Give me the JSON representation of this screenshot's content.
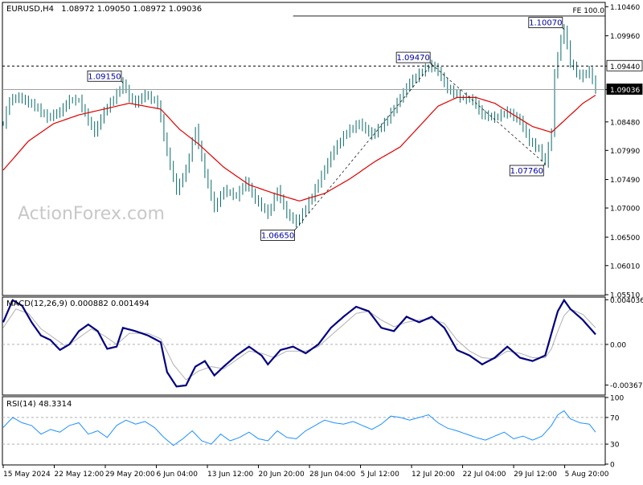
{
  "header": {
    "symbol": "EURUSD,H4",
    "ohlc": "1.08972 1.09050 1.08972 1.09036"
  },
  "watermark": "ActionForex.com",
  "chart_data": [
    {
      "type": "candlestick",
      "name": "EURUSD,H4",
      "ylim": [
        1.0551,
        1.1052
      ],
      "y_ticks": [
        "1.10460",
        "1.09960",
        "1.09440",
        "1.09036",
        "1.08480",
        "1.07990",
        "1.07490",
        "1.07000",
        "1.06500",
        "1.06010",
        "1.05510"
      ],
      "price_path": [
        [
          0,
          1.0845
        ],
        [
          2,
          1.0885
        ],
        [
          5,
          1.089
        ],
        [
          10,
          1.0875
        ],
        [
          14,
          1.0855
        ],
        [
          18,
          1.0865
        ],
        [
          21,
          1.0885
        ],
        [
          24,
          1.0885
        ],
        [
          27,
          1.085
        ],
        [
          29,
          1.083
        ],
        [
          32,
          1.0865
        ],
        [
          36,
          1.0895
        ],
        [
          38,
          1.0915
        ],
        [
          40,
          1.089
        ],
        [
          42,
          1.088
        ],
        [
          45,
          1.0895
        ],
        [
          49,
          1.088
        ],
        [
          52,
          1.0795
        ],
        [
          55,
          1.073
        ],
        [
          58,
          1.0765
        ],
        [
          61,
          1.0835
        ],
        [
          64,
          1.076
        ],
        [
          67,
          1.07
        ],
        [
          70,
          1.073
        ],
        [
          74,
          1.072
        ],
        [
          77,
          1.0745
        ],
        [
          80,
          1.0715
        ],
        [
          84,
          1.069
        ],
        [
          87,
          1.073
        ],
        [
          90,
          1.069
        ],
        [
          93,
          1.0675
        ],
        [
          95,
          1.069
        ],
        [
          98,
          1.072
        ],
        [
          101,
          1.0755
        ],
        [
          105,
          1.08
        ],
        [
          109,
          1.083
        ],
        [
          113,
          1.0845
        ],
        [
          117,
          1.0825
        ],
        [
          121,
          1.0845
        ],
        [
          125,
          1.088
        ],
        [
          129,
          1.0915
        ],
        [
          133,
          1.0935
        ],
        [
          136,
          1.0945
        ],
        [
          138,
          1.0935
        ],
        [
          141,
          1.0905
        ],
        [
          145,
          1.089
        ],
        [
          149,
          1.0885
        ],
        [
          152,
          1.086
        ],
        [
          156,
          1.0855
        ],
        [
          160,
          1.0865
        ],
        [
          164,
          1.085
        ],
        [
          167,
          1.0815
        ],
        [
          170,
          1.08
        ],
        [
          172,
          1.0778
        ],
        [
          174,
          1.083
        ],
        [
          175,
          1.093
        ],
        [
          177,
          1.099
        ],
        [
          178,
          1.1007
        ],
        [
          180,
          1.095
        ],
        [
          183,
          1.0925
        ],
        [
          186,
          1.0935
        ],
        [
          188,
          1.0904
        ]
      ],
      "ma_path": [
        [
          0,
          1.0765
        ],
        [
          8,
          1.0815
        ],
        [
          16,
          1.0845
        ],
        [
          24,
          1.086
        ],
        [
          32,
          1.087
        ],
        [
          40,
          1.088
        ],
        [
          50,
          1.087
        ],
        [
          56,
          1.0835
        ],
        [
          62,
          1.081
        ],
        [
          70,
          1.077
        ],
        [
          78,
          1.074
        ],
        [
          86,
          1.0725
        ],
        [
          94,
          1.0712
        ],
        [
          102,
          1.0725
        ],
        [
          110,
          1.075
        ],
        [
          118,
          1.078
        ],
        [
          126,
          1.0805
        ],
        [
          132,
          1.084
        ],
        [
          138,
          1.0875
        ],
        [
          144,
          1.089
        ],
        [
          150,
          1.089
        ],
        [
          156,
          1.088
        ],
        [
          162,
          1.086
        ],
        [
          168,
          1.084
        ],
        [
          174,
          1.083
        ],
        [
          178,
          1.085
        ],
        [
          184,
          1.088
        ],
        [
          188,
          1.0894
        ]
      ],
      "annotations": [
        {
          "label": "1.09150",
          "value": 1.0915
        },
        {
          "label": "1.06650",
          "value": 1.0665
        },
        {
          "label": "1.09470",
          "value": 1.0947
        },
        {
          "label": "1.07760",
          "value": 1.0776
        },
        {
          "label": "1.10070",
          "value": 1.1007
        }
      ],
      "fib_label": "FE 100.0",
      "fib_level": 1.103,
      "resistance_level": {
        "label": "1.09440",
        "value": 1.0944
      },
      "current_price": {
        "label": "1.09036",
        "value": 1.09036
      },
      "ma_color": "#e00000",
      "candle_color": "#0a6b6b"
    },
    {
      "type": "line",
      "name": "MACD(12,26,9) 0.000882 0.001494",
      "ylim": [
        -0.0045,
        0.0042
      ],
      "y_ticks": [
        "0.004036",
        "0.00",
        "-0.00367"
      ],
      "zero_line": 0,
      "macd_path": [
        [
          0,
          0.002
        ],
        [
          3,
          0.004
        ],
        [
          6,
          0.0035
        ],
        [
          9,
          0.002
        ],
        [
          12,
          0.0008
        ],
        [
          15,
          0.0004
        ],
        [
          18,
          -0.0005
        ],
        [
          21,
          0.0
        ],
        [
          24,
          0.0012
        ],
        [
          27,
          0.0018
        ],
        [
          30,
          0.0012
        ],
        [
          33,
          -0.0004
        ],
        [
          36,
          -0.0002
        ],
        [
          38,
          0.0015
        ],
        [
          42,
          0.0012
        ],
        [
          46,
          0.0008
        ],
        [
          50,
          0.0002
        ],
        [
          52,
          -0.0025
        ],
        [
          55,
          -0.0038
        ],
        [
          58,
          -0.0037
        ],
        [
          61,
          -0.002
        ],
        [
          64,
          -0.0015
        ],
        [
          67,
          -0.0028
        ],
        [
          70,
          -0.002
        ],
        [
          74,
          -0.001
        ],
        [
          78,
          -0.0002
        ],
        [
          82,
          -0.001
        ],
        [
          84,
          -0.0018
        ],
        [
          88,
          -0.0005
        ],
        [
          92,
          -0.0002
        ],
        [
          96,
          -0.0008
        ],
        [
          100,
          0.0
        ],
        [
          104,
          0.0015
        ],
        [
          108,
          0.0025
        ],
        [
          112,
          0.0034
        ],
        [
          116,
          0.003
        ],
        [
          120,
          0.0015
        ],
        [
          124,
          0.0012
        ],
        [
          128,
          0.0025
        ],
        [
          132,
          0.002
        ],
        [
          136,
          0.0025
        ],
        [
          140,
          0.0015
        ],
        [
          144,
          -0.0005
        ],
        [
          148,
          -0.001
        ],
        [
          152,
          -0.0018
        ],
        [
          156,
          -0.0012
        ],
        [
          160,
          -0.0002
        ],
        [
          164,
          -0.0012
        ],
        [
          168,
          -0.0015
        ],
        [
          172,
          -0.001
        ],
        [
          174,
          0.001
        ],
        [
          176,
          0.003
        ],
        [
          178,
          0.004
        ],
        [
          180,
          0.0032
        ],
        [
          184,
          0.0022
        ],
        [
          188,
          0.0009
        ]
      ],
      "signal_path": [
        [
          0,
          0.0015
        ],
        [
          4,
          0.0032
        ],
        [
          8,
          0.0028
        ],
        [
          12,
          0.0014
        ],
        [
          16,
          0.0006
        ],
        [
          20,
          -0.0002
        ],
        [
          24,
          0.0006
        ],
        [
          28,
          0.0014
        ],
        [
          32,
          0.0008
        ],
        [
          36,
          0.0
        ],
        [
          40,
          0.001
        ],
        [
          46,
          0.001
        ],
        [
          50,
          0.0005
        ],
        [
          54,
          -0.0018
        ],
        [
          58,
          -0.0032
        ],
        [
          62,
          -0.0024
        ],
        [
          66,
          -0.002
        ],
        [
          70,
          -0.0022
        ],
        [
          74,
          -0.0014
        ],
        [
          78,
          -0.0006
        ],
        [
          82,
          -0.0008
        ],
        [
          86,
          -0.0012
        ],
        [
          90,
          -0.0006
        ],
        [
          96,
          -0.0006
        ],
        [
          100,
          -0.0002
        ],
        [
          104,
          0.0008
        ],
        [
          108,
          0.0018
        ],
        [
          112,
          0.0028
        ],
        [
          116,
          0.003
        ],
        [
          120,
          0.0022
        ],
        [
          124,
          0.0016
        ],
        [
          128,
          0.002
        ],
        [
          132,
          0.0022
        ],
        [
          136,
          0.0023
        ],
        [
          140,
          0.0019
        ],
        [
          144,
          0.0004
        ],
        [
          148,
          -0.0006
        ],
        [
          152,
          -0.0012
        ],
        [
          156,
          -0.0013
        ],
        [
          160,
          -0.0006
        ],
        [
          164,
          -0.0008
        ],
        [
          168,
          -0.0012
        ],
        [
          172,
          -0.0012
        ],
        [
          174,
          -0.0004
        ],
        [
          176,
          0.0012
        ],
        [
          178,
          0.0026
        ],
        [
          180,
          0.0032
        ],
        [
          184,
          0.0027
        ],
        [
          188,
          0.0015
        ]
      ],
      "macd_color": "#000080",
      "signal_color": "#b0b0b0"
    },
    {
      "type": "line",
      "name": "RSI(14) 48.3314",
      "ylim": [
        0,
        100
      ],
      "y_ticks": [
        "100",
        "70",
        "30",
        "0"
      ],
      "levels": [
        70,
        30
      ],
      "rsi_path": [
        [
          0,
          55
        ],
        [
          3,
          70
        ],
        [
          6,
          62
        ],
        [
          9,
          58
        ],
        [
          12,
          45
        ],
        [
          15,
          52
        ],
        [
          18,
          48
        ],
        [
          21,
          58
        ],
        [
          24,
          62
        ],
        [
          27,
          45
        ],
        [
          30,
          50
        ],
        [
          33,
          40
        ],
        [
          36,
          58
        ],
        [
          39,
          66
        ],
        [
          42,
          60
        ],
        [
          45,
          64
        ],
        [
          48,
          55
        ],
        [
          51,
          40
        ],
        [
          54,
          28
        ],
        [
          57,
          38
        ],
        [
          60,
          50
        ],
        [
          63,
          35
        ],
        [
          66,
          30
        ],
        [
          69,
          45
        ],
        [
          72,
          35
        ],
        [
          75,
          40
        ],
        [
          78,
          48
        ],
        [
          81,
          38
        ],
        [
          84,
          35
        ],
        [
          87,
          50
        ],
        [
          90,
          40
        ],
        [
          93,
          38
        ],
        [
          96,
          50
        ],
        [
          99,
          58
        ],
        [
          102,
          66
        ],
        [
          105,
          62
        ],
        [
          108,
          60
        ],
        [
          111,
          64
        ],
        [
          114,
          58
        ],
        [
          117,
          52
        ],
        [
          120,
          60
        ],
        [
          123,
          72
        ],
        [
          126,
          70
        ],
        [
          129,
          66
        ],
        [
          132,
          70
        ],
        [
          135,
          74
        ],
        [
          138,
          62
        ],
        [
          141,
          54
        ],
        [
          144,
          50
        ],
        [
          147,
          45
        ],
        [
          150,
          40
        ],
        [
          153,
          36
        ],
        [
          156,
          42
        ],
        [
          159,
          48
        ],
        [
          162,
          38
        ],
        [
          165,
          42
        ],
        [
          168,
          36
        ],
        [
          171,
          42
        ],
        [
          174,
          58
        ],
        [
          176,
          74
        ],
        [
          178,
          80
        ],
        [
          180,
          68
        ],
        [
          183,
          62
        ],
        [
          186,
          60
        ],
        [
          188,
          48
        ]
      ],
      "rsi_color": "#1e90ff"
    }
  ],
  "time_axis": {
    "labels": [
      "15 May 2024",
      "22 May 12:00",
      "29 May 20:00",
      "6 Jun 04:00",
      "13 Jun 12:00",
      "20 Jun 20:00",
      "28 Jun 04:00",
      "5 Jul 12:00",
      "12 Jul 20:00",
      "22 Jul 04:00",
      "29 Jul 12:00",
      "5 Aug 20:00"
    ]
  }
}
